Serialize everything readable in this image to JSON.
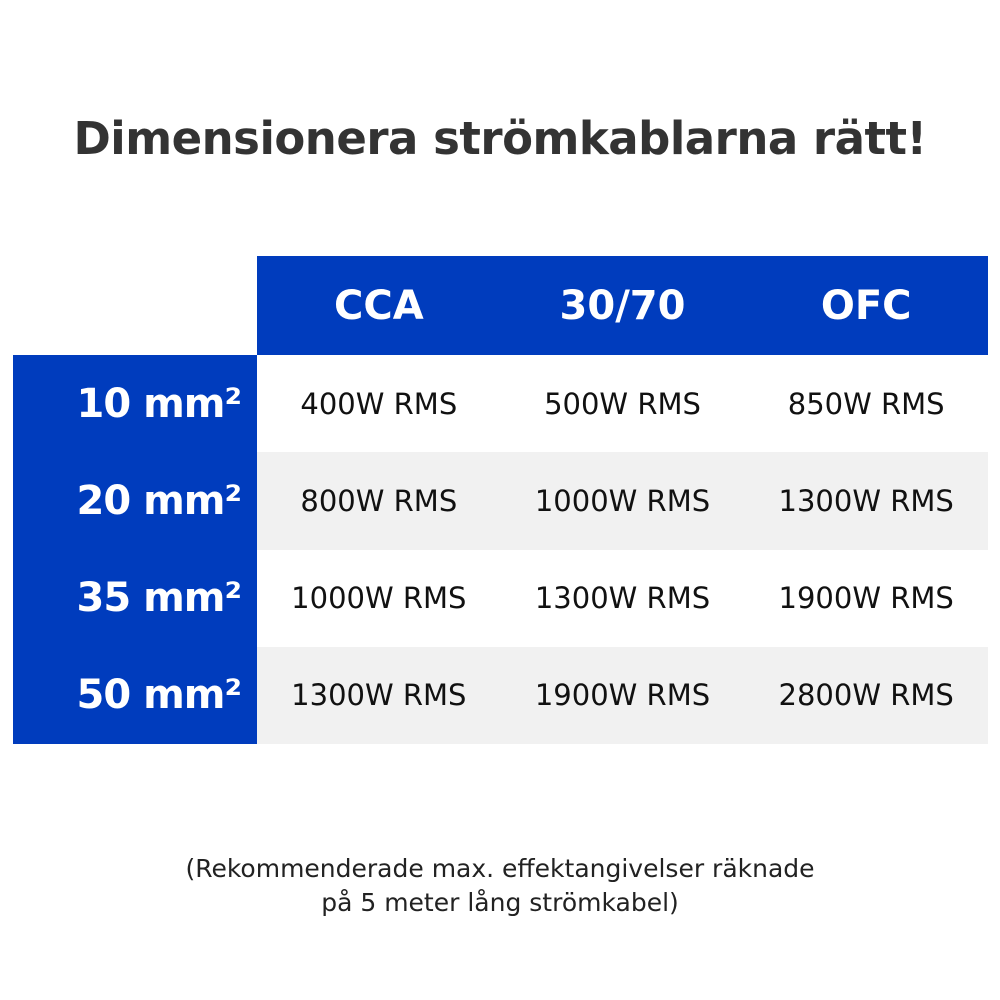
{
  "title": "Dimensionera strömkablarna rätt!",
  "table": {
    "columns": [
      "CCA",
      "30/70",
      "OFC"
    ],
    "rows": [
      {
        "label": "10 mm²",
        "values": [
          "400W RMS",
          "500W RMS",
          "850W RMS"
        ]
      },
      {
        "label": "20 mm²",
        "values": [
          "800W RMS",
          "1000W RMS",
          "1300W RMS"
        ]
      },
      {
        "label": "35 mm²",
        "values": [
          "1000W RMS",
          "1300W RMS",
          "1900W RMS"
        ]
      },
      {
        "label": "50 mm²",
        "values": [
          "1300W RMS",
          "1900W RMS",
          "2800W RMS"
        ]
      }
    ]
  },
  "note": {
    "line1": "(Rekommenderade max. effektangivelser räknade",
    "line2": "på 5 meter lång strömkabel)"
  },
  "colors": {
    "accent": "#003cbd",
    "stripe": "#f1f1f1"
  }
}
